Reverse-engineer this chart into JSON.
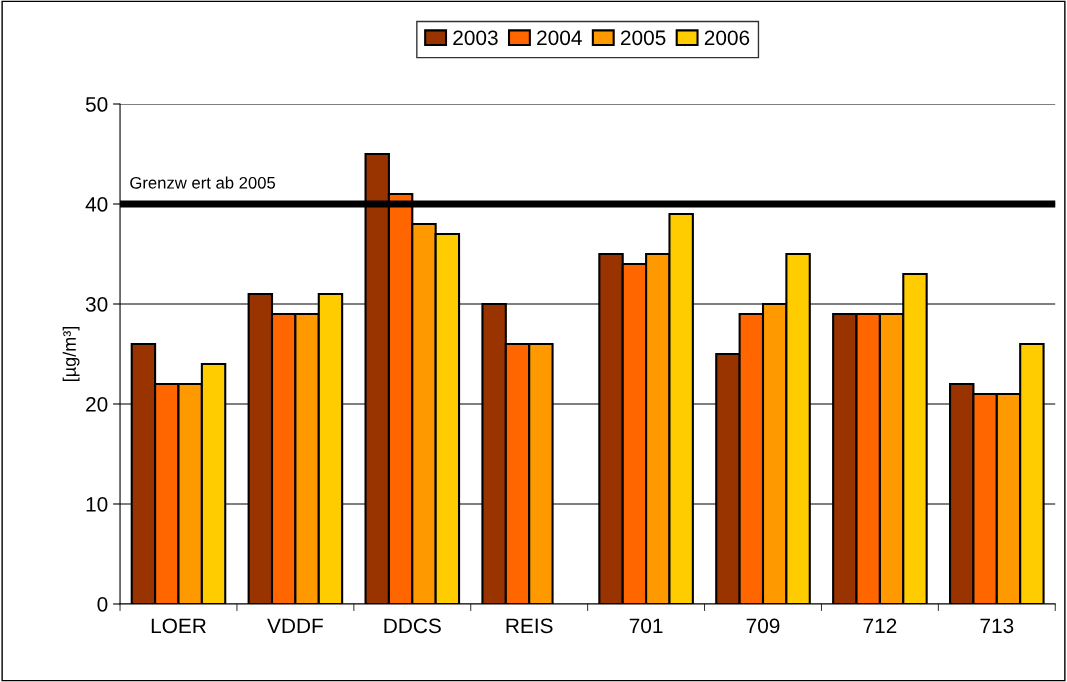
{
  "chart_data": {
    "type": "bar",
    "ylabel": "[µg/m³]",
    "categories": [
      "LOER",
      "VDDF",
      "DDCS",
      "REIS",
      "701",
      "709",
      "712",
      "713"
    ],
    "series": [
      {
        "name": "2003",
        "color": "#993300",
        "values": [
          26,
          31,
          45,
          30,
          35,
          25,
          29,
          22
        ]
      },
      {
        "name": "2004",
        "color": "#ff6600",
        "values": [
          22,
          29,
          41,
          26,
          34,
          29,
          29,
          21
        ]
      },
      {
        "name": "2005",
        "color": "#ff9900",
        "values": [
          22,
          29,
          38,
          26,
          35,
          30,
          29,
          21
        ]
      },
      {
        "name": "2006",
        "color": "#ffcc00",
        "values": [
          24,
          31,
          37,
          null,
          39,
          35,
          33,
          26
        ]
      }
    ],
    "ylim": [
      0,
      50
    ],
    "yticks": [
      0,
      10,
      20,
      30,
      40,
      50
    ],
    "grid": "y",
    "legend": "top",
    "ref_lines": [
      {
        "axis": "y",
        "value": 40,
        "label": "Grenzw ert ab 2005",
        "color": "#000000"
      }
    ]
  }
}
